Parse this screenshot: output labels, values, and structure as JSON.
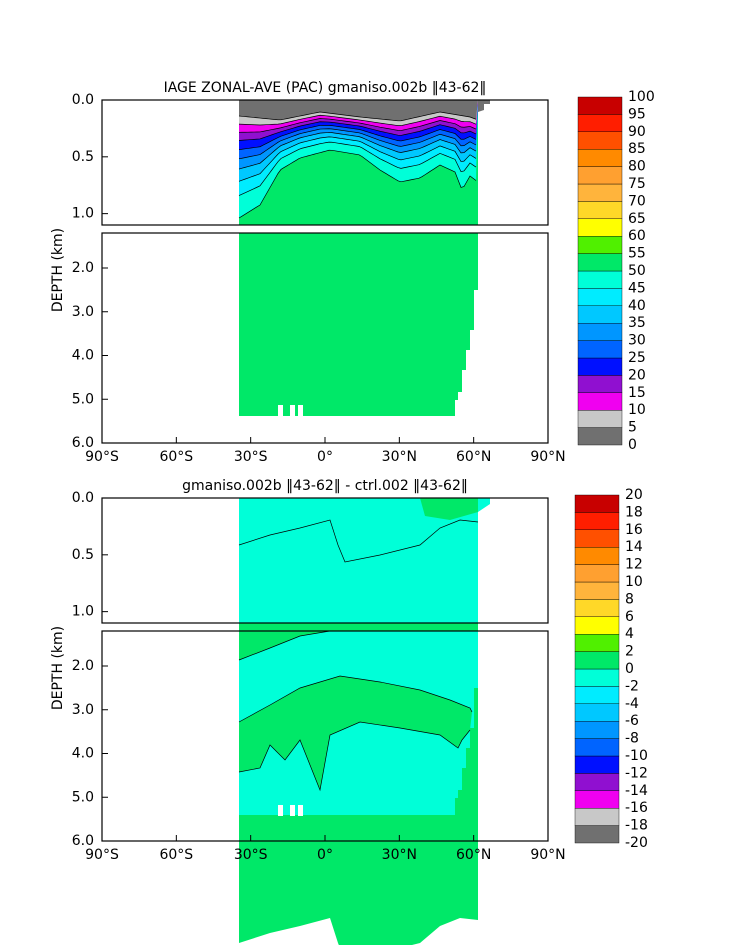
{
  "chart_data": [
    {
      "type": "contour",
      "title": "IAGE ZONAL-AVE (PAC) gmaniso.002b ‖43-62‖",
      "ylabel": "DEPTH (km)",
      "xlim": [
        -90,
        90
      ],
      "xticks": [
        {
          "value": -90,
          "label": "90°S"
        },
        {
          "value": -60,
          "label": "60°S"
        },
        {
          "value": -30,
          "label": "30°S"
        },
        {
          "value": 0,
          "label": "0°"
        },
        {
          "value": 30,
          "label": "30°N"
        },
        {
          "value": 60,
          "label": "60°N"
        },
        {
          "value": 90,
          "label": "90°N"
        }
      ],
      "ylim": [
        0,
        6
      ],
      "y_break": [
        1.1,
        1.2
      ],
      "yticks": [
        {
          "value": 0,
          "label": "0.0"
        },
        0.5,
        {
          "value": 1,
          "label": "1.0"
        },
        {
          "value": 2,
          "label": "2.0"
        },
        {
          "value": 3,
          "label": "3.0"
        },
        {
          "value": 4,
          "label": "4.0"
        },
        {
          "value": 5,
          "label": "5.0"
        },
        {
          "value": 6,
          "label": "6.0"
        }
      ],
      "levels": [
        0,
        5,
        10,
        15,
        20,
        25,
        30,
        35,
        40,
        45,
        50,
        55,
        60,
        65,
        70,
        75,
        80,
        85,
        90,
        95,
        100
      ],
      "colors": [
        "#707070",
        "#c8c8c8",
        "#f000f0",
        "#9010d0",
        "#0010ff",
        "#0064ff",
        "#0096ff",
        "#00c8ff",
        "#00ecff",
        "#00ffd8",
        "#00e868",
        "#50f000",
        "#ffff00",
        "#ffd828",
        "#ffb43c",
        "#ffa030",
        "#ff8a00",
        "#ff5000",
        "#ff1e00",
        "#c80000"
      ]
    },
    {
      "type": "contour",
      "title": "gmaniso.002b ‖43-62‖ - ctrl.002 ‖43-62‖",
      "ylabel": "DEPTH (km)",
      "xlim": [
        -90,
        90
      ],
      "xticks": [
        {
          "value": -90,
          "label": "90°S"
        },
        {
          "value": -60,
          "label": "60°S"
        },
        {
          "value": -30,
          "label": "30°S"
        },
        {
          "value": 0,
          "label": "0°"
        },
        {
          "value": 30,
          "label": "30°N"
        },
        {
          "value": 60,
          "label": "60°N"
        },
        {
          "value": 90,
          "label": "90°N"
        }
      ],
      "ylim": [
        0,
        6
      ],
      "y_break": [
        1.1,
        1.2
      ],
      "yticks": [
        {
          "value": 0,
          "label": "0.0"
        },
        0.5,
        {
          "value": 1,
          "label": "1.0"
        },
        {
          "value": 2,
          "label": "2.0"
        },
        {
          "value": 3,
          "label": "3.0"
        },
        {
          "value": 4,
          "label": "4.0"
        },
        {
          "value": 5,
          "label": "5.0"
        },
        {
          "value": 6,
          "label": "6.0"
        }
      ],
      "levels": [
        -20,
        -18,
        -16,
        -14,
        -12,
        -10,
        -8,
        -6,
        -4,
        -2,
        0,
        2,
        4,
        6,
        8,
        10,
        12,
        14,
        16,
        18,
        20
      ],
      "colors": [
        "#707070",
        "#c8c8c8",
        "#f000f0",
        "#9010d0",
        "#0010ff",
        "#0064ff",
        "#0096ff",
        "#00c8ff",
        "#00ecff",
        "#00ffd8",
        "#00e868",
        "#50f000",
        "#ffff00",
        "#ffd828",
        "#ffb43c",
        "#ffa030",
        "#ff8a00",
        "#ff5000",
        "#ff1e00",
        "#c80000"
      ]
    }
  ]
}
